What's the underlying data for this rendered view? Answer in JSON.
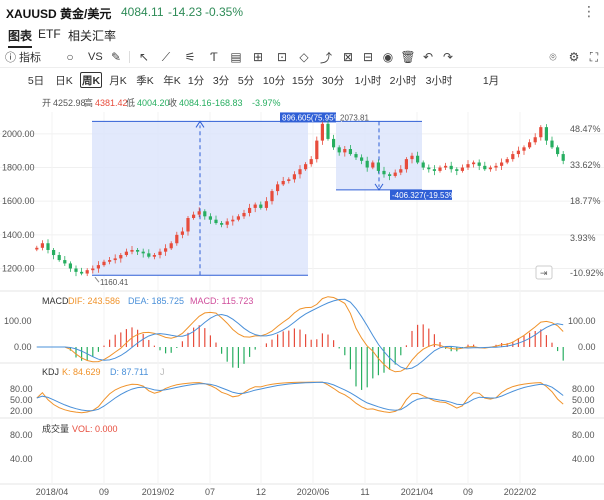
{
  "header": {
    "symbol": "XAUUSD 黄金/美元",
    "price": "4084.11",
    "change": "-14.23",
    "change_pct": "-0.35%",
    "menu_icon": "more-vertical-icon"
  },
  "tabs": [
    {
      "label": "图表",
      "active": true
    },
    {
      "label": "ETF",
      "active": false
    },
    {
      "label": "相关汇率",
      "active": false
    }
  ],
  "toolbar": {
    "indicators_label": "指标",
    "vs_label": "VS",
    "icons": [
      "indicator-icon",
      "circle-icon",
      "vs-icon",
      "pencil-icon",
      "cursor-icon",
      "line-tool-icon",
      "fib-tool-icon",
      "text-tool-icon",
      "brush-tool-icon",
      "measure-tool-icon",
      "ruler-icon",
      "magnet-icon",
      "eye-icon",
      "trash-icon",
      "undo-icon",
      "redo-icon",
      "camera-icon",
      "settings-icon"
    ]
  },
  "periods": [
    {
      "label": "5日",
      "active": false
    },
    {
      "label": "日K",
      "active": false
    },
    {
      "label": "周K",
      "active": true
    },
    {
      "label": "月K",
      "active": false
    },
    {
      "label": "季K",
      "active": false
    },
    {
      "label": "年K",
      "active": false
    },
    {
      "label": "1分",
      "active": false
    },
    {
      "label": "3分",
      "active": false
    },
    {
      "label": "5分",
      "active": false
    },
    {
      "label": "10分",
      "active": false
    },
    {
      "label": "15分",
      "active": false
    },
    {
      "label": "30分",
      "active": false
    },
    {
      "label": "1小时",
      "active": false
    },
    {
      "label": "2小时",
      "active": false
    },
    {
      "label": "3小时",
      "active": false
    },
    {
      "label": "1月",
      "active": false
    }
  ],
  "ohlc": {
    "open_label": "开",
    "open": "4252.98",
    "high_label": "高",
    "high": "4381.42",
    "low_label": "低",
    "low": "4004.20",
    "close_label": "收",
    "close": "4084.16",
    "change": "-168.83",
    "change_pct": "-3.97%"
  },
  "chart_data": {
    "type": "candlestick",
    "x_ticks": [
      "2018/04",
      "09",
      "2019/02",
      "07",
      "12",
      "2020/06",
      "11",
      "2021/04",
      "09",
      "2022/02"
    ],
    "price_axis": {
      "ticks": [
        1200,
        1400,
        1600,
        1800,
        2000
      ],
      "labels": [
        "1200.00",
        "1400.00",
        "1600.00",
        "1800.00",
        "2000.00"
      ],
      "range": [
        1090,
        2130
      ]
    },
    "percent_axis": [
      "48.47%",
      "33.62%",
      "18.77%",
      "3.93%",
      "-10.92%"
    ],
    "price_series": [
      1323,
      1350,
      1310,
      1280,
      1250,
      1230,
      1200,
      1180,
      1170,
      1190,
      1200,
      1220,
      1240,
      1250,
      1260,
      1280,
      1300,
      1310,
      1300,
      1290,
      1270,
      1280,
      1300,
      1320,
      1350,
      1400,
      1420,
      1500,
      1520,
      1540,
      1510,
      1490,
      1470,
      1460,
      1480,
      1490,
      1510,
      1530,
      1560,
      1580,
      1560,
      1600,
      1660,
      1700,
      1720,
      1730,
      1760,
      1790,
      1820,
      1850,
      1960,
      2060,
      1970,
      1920,
      1890,
      1910,
      1880,
      1860,
      1840,
      1800,
      1830,
      1780,
      1760,
      1750,
      1770,
      1790,
      1850,
      1870,
      1830,
      1800,
      1790,
      1780,
      1800,
      1810,
      1790,
      1780,
      1800,
      1820,
      1830,
      1810,
      1790,
      1800,
      1810,
      1830,
      1850,
      1880,
      1900,
      1920,
      1950,
      1980,
      2040,
      1960,
      1920,
      1880,
      1840
    ],
    "annotations": {
      "low_label": "1160.41",
      "high_label": "2073.81",
      "rise_label": "896.605(75.95%)",
      "fall_label": "-406.327(-19.53%)"
    },
    "macd": {
      "title": "MACD",
      "dif_label": "DIF: 243.586",
      "dea_label": "DEA: 185.725",
      "macd_label": "MACD: 115.723",
      "ticks": [
        "100.00",
        "0.00"
      ],
      "dif_color": "#f0932b",
      "dea_color": "#4a90d9",
      "macd_color": "#d04e9c"
    },
    "kdj": {
      "title": "KDJ",
      "k_label": "K: 84.629",
      "d_label": "D: 87.711",
      "j_label": "J",
      "ticks": [
        "80.00",
        "50.00",
        "20.00"
      ],
      "k_color": "#f0932b",
      "d_color": "#4a90d9"
    },
    "volume": {
      "title": "成交量",
      "vol_label": "VOL: 0.000",
      "ticks": [
        "80.00",
        "40.00"
      ]
    },
    "colors": {
      "up": "#e74c3c",
      "down": "#27ae60",
      "measure": "#2f5fd6",
      "measure_fill": "#dbe4fb"
    }
  }
}
